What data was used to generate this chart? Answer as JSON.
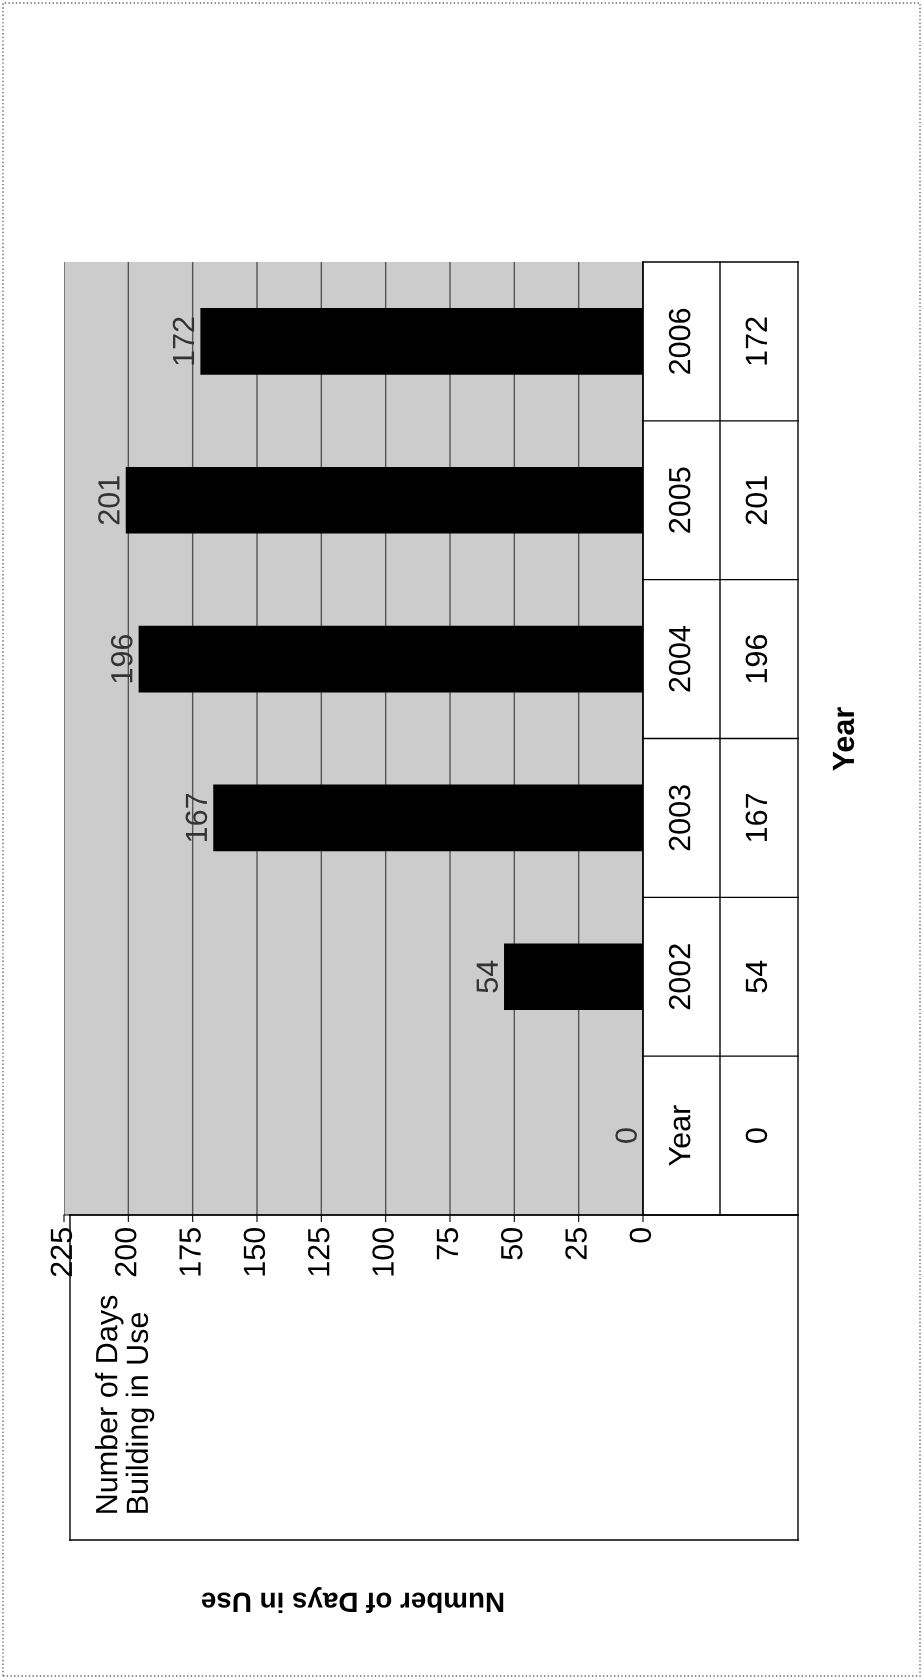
{
  "chart_data": {
    "type": "bar",
    "orientation": "horizontal",
    "annotations": [
      "Number of Days in Use",
      "172",
      "201",
      "196",
      "167",
      "54",
      "0"
    ],
    "ylabel": "Year",
    "categories": [
      "2006",
      "2005",
      "2004",
      "2003",
      "2002",
      "Year"
    ],
    "series": [
      {
        "name": "Number of Days Building in Use",
        "color": "#000000",
        "values": [
          172,
          201,
          196,
          167,
          54,
          0
        ]
      }
    ],
    "xlim": [
      225,
      0
    ],
    "xticks": [
      225,
      200,
      175,
      150,
      125,
      100,
      75,
      50,
      25,
      0
    ],
    "grid": "x",
    "data_labels": true
  }
}
